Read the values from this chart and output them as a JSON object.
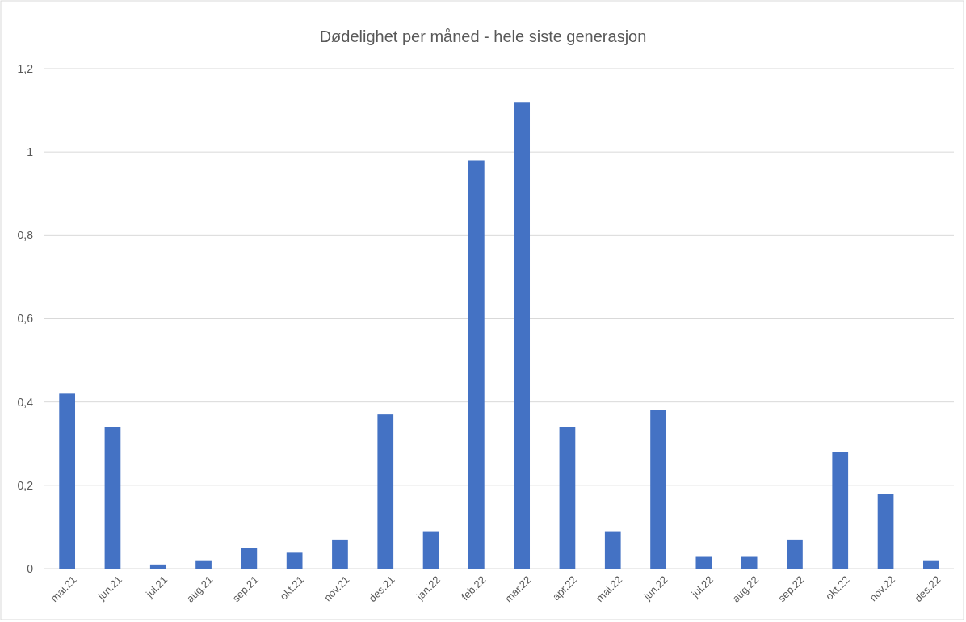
{
  "chart_data": {
    "type": "bar",
    "title": "Dødelighet per måned - hele siste generasjon",
    "categories": [
      "mai.21",
      "jun.21",
      "jul.21",
      "aug.21",
      "sep.21",
      "okt.21",
      "nov.21",
      "des.21",
      "jan.22",
      "feb.22",
      "mar.22",
      "apr.22",
      "mai.22",
      "jun.22",
      "jul.22",
      "aug.22",
      "sep.22",
      "okt.22",
      "nov.22",
      "des.22"
    ],
    "values": [
      0.42,
      0.34,
      0.01,
      0.02,
      0.05,
      0.04,
      0.07,
      0.37,
      0.09,
      0.98,
      1.12,
      0.34,
      0.09,
      0.38,
      0.03,
      0.03,
      0.07,
      0.28,
      0.18,
      0.02
    ],
    "color": "#4472c4",
    "ylim": [
      0,
      1.2
    ],
    "yticks": [
      0,
      {
        "value": 0.2,
        "label": "0,2"
      },
      {
        "value": 0.4,
        "label": "0,4"
      },
      {
        "value": 0.6,
        "label": "0,6"
      },
      {
        "value": 0.8,
        "label": "0,8"
      },
      1,
      {
        "value": 1.2,
        "label": "1,2"
      }
    ],
    "grid": "y"
  }
}
